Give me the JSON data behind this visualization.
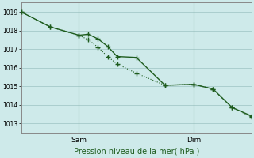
{
  "background_color": "#ceeaea",
  "grid_color": "#aacece",
  "line_color": "#1e5c1e",
  "title": "Pression niveau de la mer( hPa )",
  "ylim": [
    1012.5,
    1019.5
  ],
  "yticks": [
    1013,
    1014,
    1015,
    1016,
    1017,
    1018,
    1019
  ],
  "xlim": [
    0,
    24
  ],
  "xtick_positions": [
    6,
    18
  ],
  "xtick_labels": [
    "Sam",
    "Dim"
  ],
  "vline_positions": [
    6,
    18
  ],
  "line1_x": [
    0,
    3,
    6,
    7,
    8,
    9,
    10,
    12,
    15,
    18,
    20,
    22,
    24
  ],
  "line1_y": [
    1019.0,
    1018.2,
    1017.75,
    1017.8,
    1017.55,
    1017.15,
    1016.6,
    1016.55,
    1015.05,
    1015.1,
    1014.85,
    1013.85,
    1013.4
  ],
  "line2_x": [
    0,
    3,
    6,
    7,
    8,
    9,
    10,
    12,
    15,
    18,
    20,
    22,
    24
  ],
  "line2_y": [
    1019.0,
    1018.2,
    1017.75,
    1017.5,
    1017.1,
    1016.6,
    1016.2,
    1015.7,
    1015.05,
    1015.1,
    1014.85,
    1013.85,
    1013.35
  ],
  "marker_size": 2.5,
  "linewidth1": 1.0,
  "linewidth2": 0.8
}
